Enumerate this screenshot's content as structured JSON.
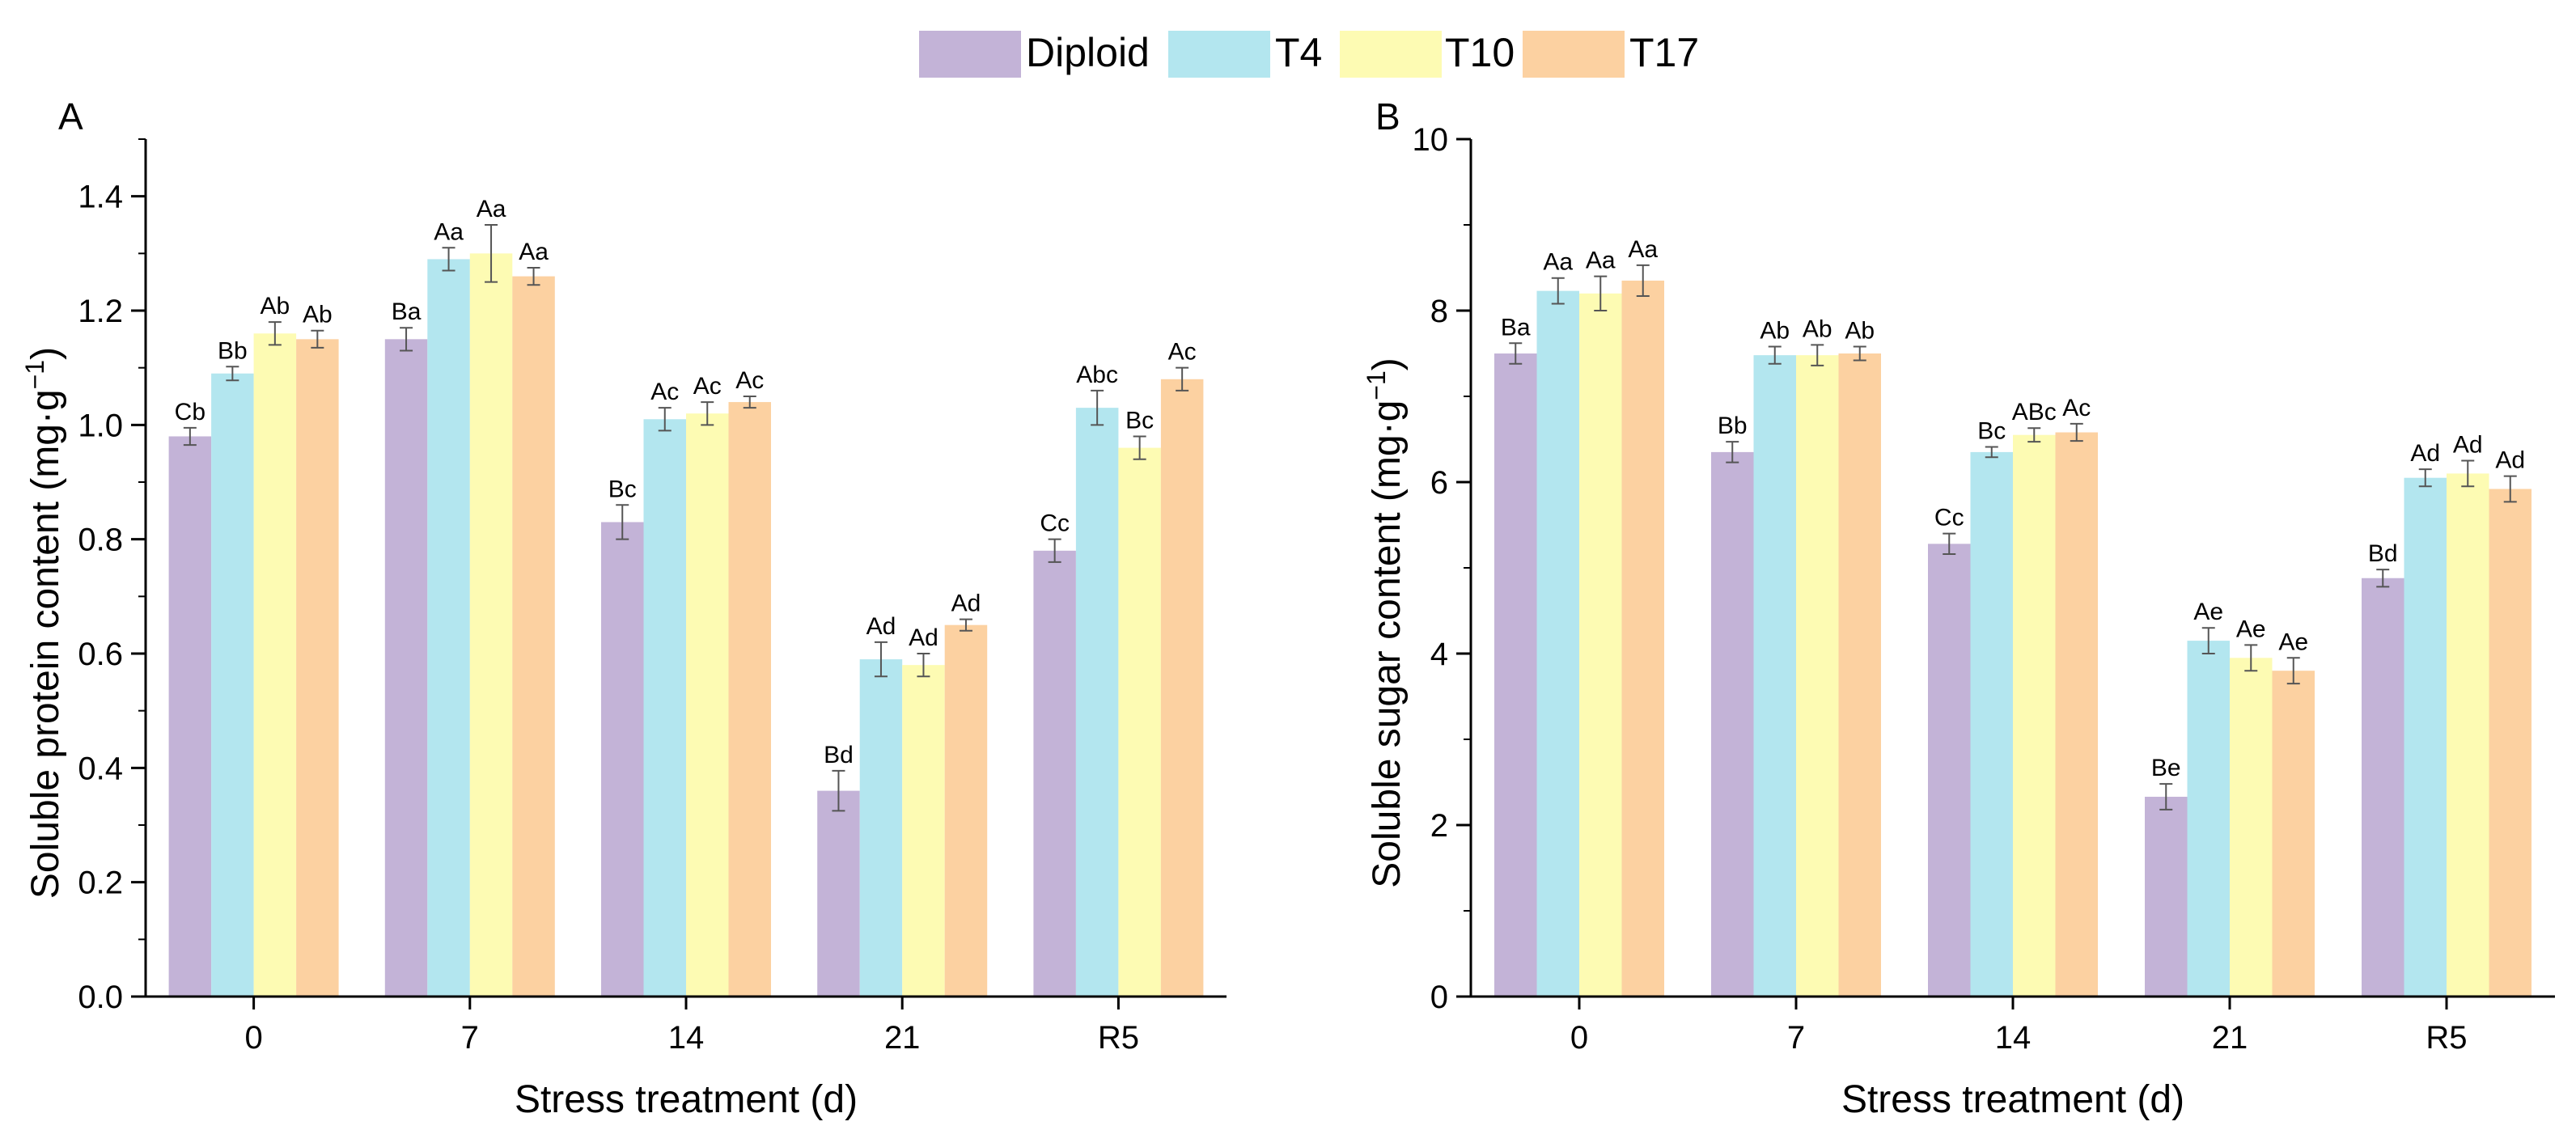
{
  "legend": {
    "position": "top-center",
    "entries": [
      {
        "name": "Diploid",
        "color": "#c3b3d7"
      },
      {
        "name": "T4",
        "color": "#b3e6ef"
      },
      {
        "name": "T10",
        "color": "#fdfbb3"
      },
      {
        "name": "T17",
        "color": "#fcd1a1"
      }
    ]
  },
  "chart_data": [
    {
      "type": "bar",
      "panel_label": "A",
      "title": "",
      "xlabel": "Stress treatment (d)",
      "ylabel": "Soluble protein content (mg·g",
      "ylabel_sup": "−1",
      "ylabel_close": ")",
      "ylim": [
        0,
        1.5
      ],
      "yticks": [
        "0.0",
        "0.2",
        "0.4",
        "0.6",
        "0.8",
        "1.0",
        "1.2",
        "1.4"
      ],
      "ytick_values": [
        0,
        0.2,
        0.4,
        0.6,
        0.8,
        1.0,
        1.2,
        1.4
      ],
      "minor_step": 0.1,
      "grid": false,
      "categories": [
        "0",
        "7",
        "14",
        "21",
        "R5"
      ],
      "series": [
        {
          "name": "Diploid",
          "color": "#c3b3d7",
          "values": [
            0.98,
            1.15,
            0.83,
            0.36,
            0.78
          ],
          "errors": [
            0.015,
            0.02,
            0.03,
            0.035,
            0.02
          ],
          "labels": [
            "Cb",
            "Ba",
            "Bc",
            "Bd",
            "Cc"
          ]
        },
        {
          "name": "T4",
          "color": "#b3e6ef",
          "values": [
            1.09,
            1.29,
            1.01,
            0.59,
            1.03
          ],
          "errors": [
            0.012,
            0.02,
            0.02,
            0.03,
            0.03
          ],
          "labels": [
            "Bb",
            "Aa",
            "Ac",
            "Ad",
            "Abc"
          ]
        },
        {
          "name": "T10",
          "color": "#fdfbb3",
          "values": [
            1.16,
            1.3,
            1.02,
            0.58,
            0.96
          ],
          "errors": [
            0.02,
            0.05,
            0.02,
            0.02,
            0.02
          ],
          "labels": [
            "Ab",
            "Aa",
            "Ac",
            "Ad",
            "Bc"
          ]
        },
        {
          "name": "T17",
          "color": "#fcd1a1",
          "values": [
            1.15,
            1.26,
            1.04,
            0.65,
            1.08
          ],
          "errors": [
            0.015,
            0.015,
            0.01,
            0.01,
            0.02
          ],
          "labels": [
            "Ab",
            "Aa",
            "Ac",
            "Ad",
            "Ac"
          ]
        }
      ]
    },
    {
      "type": "bar",
      "panel_label": "B",
      "title": "",
      "xlabel": "Stress treatment (d)",
      "ylabel": "Soluble sugar content (mg·g",
      "ylabel_sup": "−1",
      "ylabel_close": ")",
      "ylim": [
        0,
        10
      ],
      "yticks": [
        "0",
        "2",
        "4",
        "6",
        "8",
        "10"
      ],
      "ytick_values": [
        0,
        2,
        4,
        6,
        8,
        10
      ],
      "minor_step": 1,
      "grid": false,
      "categories": [
        "0",
        "7",
        "14",
        "21",
        "R5"
      ],
      "series": [
        {
          "name": "Diploid",
          "color": "#c3b3d7",
          "values": [
            7.5,
            6.35,
            5.28,
            2.33,
            4.88
          ],
          "errors": [
            0.12,
            0.12,
            0.12,
            0.15,
            0.1
          ],
          "labels": [
            "Ba",
            "Bb",
            "Cc",
            "Be",
            "Bd"
          ]
        },
        {
          "name": "T4",
          "color": "#b3e6ef",
          "values": [
            8.23,
            7.48,
            6.35,
            4.15,
            6.05
          ],
          "errors": [
            0.15,
            0.1,
            0.06,
            0.15,
            0.1
          ],
          "labels": [
            "Aa",
            "Ab",
            "Bc",
            "Ae",
            "Ad"
          ]
        },
        {
          "name": "T10",
          "color": "#fdfbb3",
          "values": [
            8.2,
            7.48,
            6.55,
            3.95,
            6.1
          ],
          "errors": [
            0.2,
            0.12,
            0.08,
            0.15,
            0.15
          ],
          "labels": [
            "Aa",
            "Ab",
            "ABc",
            "Ae",
            "Ad"
          ]
        },
        {
          "name": "T17",
          "color": "#fcd1a1",
          "values": [
            8.35,
            7.5,
            6.58,
            3.8,
            5.92
          ],
          "errors": [
            0.18,
            0.08,
            0.1,
            0.15,
            0.15
          ],
          "labels": [
            "Aa",
            "Ab",
            "Ac",
            "Ae",
            "Ad"
          ]
        }
      ]
    }
  ]
}
